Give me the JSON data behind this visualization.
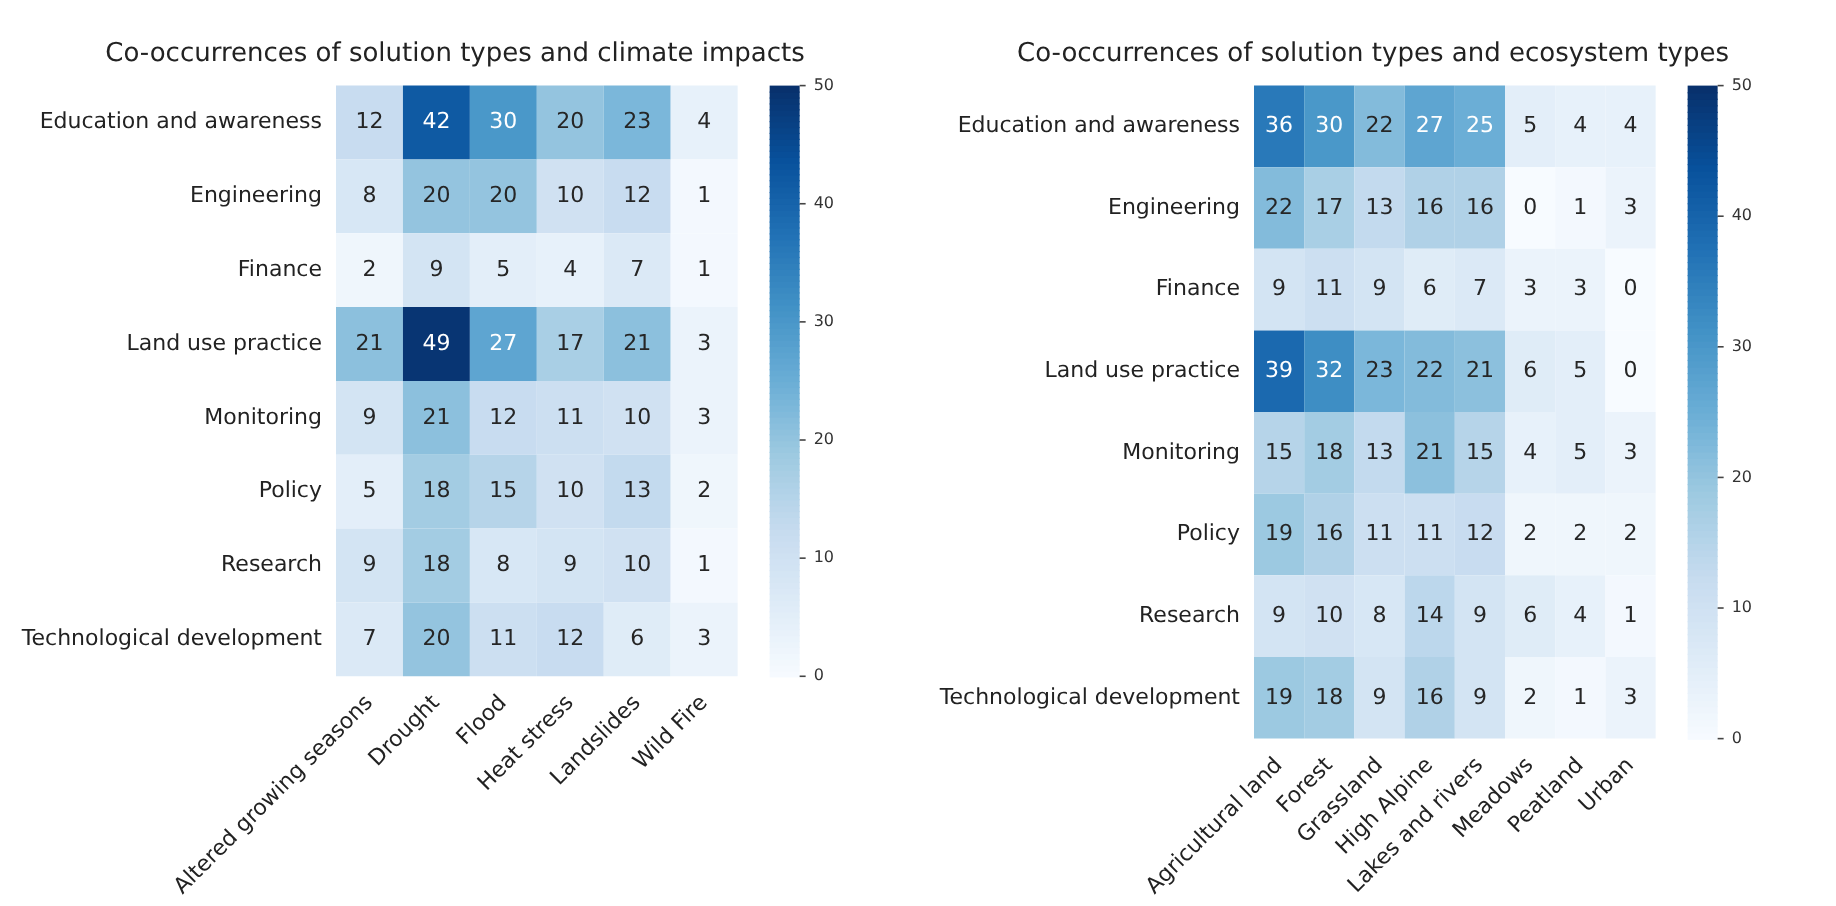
{
  "chart_data": [
    {
      "type": "heatmap",
      "title": "Co-occurrences of solution types and climate impacts",
      "categories": [
        "Altered growing seasons",
        "Drought",
        "Flood",
        "Heat stress",
        "Landslides",
        "Wild Fire"
      ],
      "y_categories": [
        "Education and awareness",
        "Engineering",
        "Finance",
        "Land use practice",
        "Monitoring",
        "Policy",
        "Research",
        "Technological development"
      ],
      "cells": [
        [
          12,
          42,
          30,
          20,
          23,
          4
        ],
        [
          8,
          20,
          20,
          10,
          12,
          1
        ],
        [
          2,
          9,
          5,
          4,
          7,
          1
        ],
        [
          21,
          49,
          27,
          17,
          21,
          3
        ],
        [
          9,
          21,
          12,
          11,
          10,
          3
        ],
        [
          5,
          18,
          15,
          10,
          13,
          2
        ],
        [
          9,
          18,
          8,
          9,
          10,
          1
        ],
        [
          7,
          20,
          11,
          12,
          6,
          3
        ]
      ],
      "clim": [
        0,
        50
      ],
      "cticks": [
        0,
        10,
        20,
        30,
        40,
        50
      ],
      "data_labels": true
    },
    {
      "type": "heatmap",
      "title": "Co-occurrences of solution types and ecosystem types",
      "categories": [
        "Agricultural land",
        "Forest",
        "Grassland",
        "High Alpine",
        "Lakes and rivers",
        "Meadows",
        "Peatland",
        "Urban"
      ],
      "y_categories": [
        "Education and awareness",
        "Engineering",
        "Finance",
        "Land use practice",
        "Monitoring",
        "Policy",
        "Research",
        "Technological development"
      ],
      "cells": [
        [
          36,
          30,
          22,
          27,
          25,
          5,
          4,
          4
        ],
        [
          22,
          17,
          13,
          16,
          16,
          0,
          1,
          3
        ],
        [
          9,
          11,
          9,
          6,
          7,
          3,
          3,
          0
        ],
        [
          39,
          32,
          23,
          22,
          21,
          6,
          5,
          0
        ],
        [
          15,
          18,
          13,
          21,
          15,
          4,
          5,
          3
        ],
        [
          19,
          16,
          11,
          11,
          12,
          2,
          2,
          2
        ],
        [
          9,
          10,
          8,
          14,
          9,
          6,
          4,
          1
        ],
        [
          19,
          18,
          9,
          16,
          9,
          2,
          1,
          3
        ]
      ],
      "clim": [
        0,
        50
      ],
      "cticks": [
        0,
        10,
        20,
        30,
        40,
        50
      ],
      "data_labels": true
    }
  ]
}
